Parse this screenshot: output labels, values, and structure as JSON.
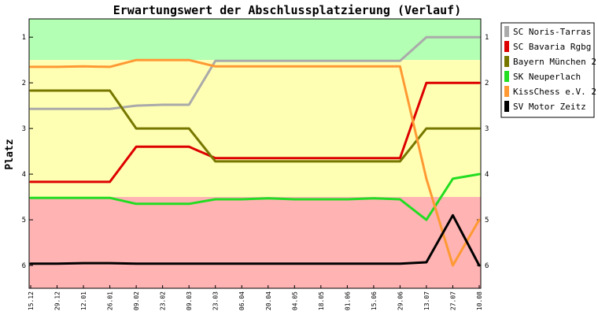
{
  "chart_data": {
    "type": "line",
    "title": "Erwartungswert der Abschlussplatzierung (Verlauf)",
    "xlabel": "",
    "ylabel": "Platz",
    "ylim": [
      0.6,
      6.5
    ],
    "y_inverted": true,
    "y_ticks": [
      1,
      2,
      3,
      4,
      5,
      6
    ],
    "categories": [
      "15.12",
      "29.12",
      "12.01",
      "26.01",
      "09.02",
      "23.02",
      "09.03",
      "23.03",
      "06.04",
      "20.04",
      "04.05",
      "18.05",
      "01.06",
      "15.06",
      "29.06",
      "13.07",
      "27.07",
      "10.08"
    ],
    "grid": false,
    "legend_position": "right",
    "background_bands": [
      {
        "from": 0.6,
        "to": 1.5,
        "color": "#b3ffb3"
      },
      {
        "from": 1.5,
        "to": 4.5,
        "color": "#ffffb3"
      },
      {
        "from": 4.5,
        "to": 6.5,
        "color": "#ffb3b3"
      }
    ],
    "series": [
      {
        "name": "SC Noris-Tarras",
        "color": "#aaaaaa",
        "values": [
          2.57,
          2.57,
          2.57,
          2.57,
          2.5,
          2.48,
          2.48,
          1.52,
          1.52,
          1.52,
          1.52,
          1.52,
          1.52,
          1.52,
          1.52,
          1.0,
          1.0,
          1.0
        ]
      },
      {
        "name": "SC Bavaria Rgbg",
        "color": "#dd0000",
        "values": [
          4.17,
          4.17,
          4.17,
          4.17,
          3.4,
          3.4,
          3.4,
          3.65,
          3.65,
          3.65,
          3.65,
          3.65,
          3.65,
          3.65,
          3.65,
          2.0,
          2.0,
          2.0
        ]
      },
      {
        "name": "Bayern München 2",
        "color": "#777700",
        "values": [
          2.17,
          2.17,
          2.17,
          2.17,
          3.0,
          3.0,
          3.0,
          3.72,
          3.72,
          3.72,
          3.72,
          3.72,
          3.72,
          3.72,
          3.72,
          3.0,
          3.0,
          3.0
        ]
      },
      {
        "name": "SK Neuperlach",
        "color": "#22dd22",
        "values": [
          4.52,
          4.52,
          4.52,
          4.52,
          4.65,
          4.65,
          4.65,
          4.55,
          4.55,
          4.53,
          4.55,
          4.55,
          4.55,
          4.53,
          4.55,
          5.0,
          4.1,
          4.0
        ]
      },
      {
        "name": "KissChess e.V. 2",
        "color": "#ff9933",
        "values": [
          1.65,
          1.65,
          1.64,
          1.65,
          1.5,
          1.5,
          1.5,
          1.64,
          1.64,
          1.64,
          1.64,
          1.64,
          1.64,
          1.64,
          1.64,
          4.1,
          6.0,
          5.0
        ]
      },
      {
        "name": "SV Motor Zeitz",
        "color": "#000000",
        "values": [
          5.96,
          5.96,
          5.95,
          5.95,
          5.96,
          5.96,
          5.96,
          5.96,
          5.96,
          5.96,
          5.96,
          5.96,
          5.96,
          5.96,
          5.96,
          5.93,
          4.9,
          6.0
        ]
      }
    ]
  }
}
